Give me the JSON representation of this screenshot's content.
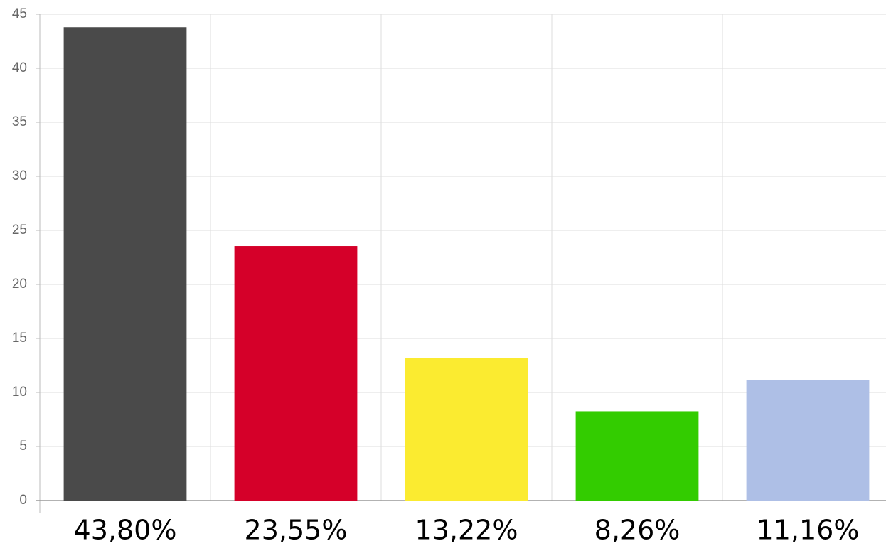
{
  "chart_data": {
    "type": "bar",
    "categories": [
      null,
      null,
      null,
      null,
      null
    ],
    "values": [
      43.8,
      23.55,
      13.22,
      8.26,
      11.16
    ],
    "value_labels": [
      "43,80%",
      "23,55%",
      "13,22%",
      "8,26%",
      "11,16%"
    ],
    "colors": [
      "#4a4a4a",
      "#d50029",
      "#fbeb30",
      "#33cc00",
      "#aebfe6"
    ],
    "ylim": [
      0,
      45
    ],
    "yticks": [
      0,
      5,
      10,
      15,
      20,
      25,
      30,
      35,
      40,
      45
    ],
    "grid": true
  }
}
